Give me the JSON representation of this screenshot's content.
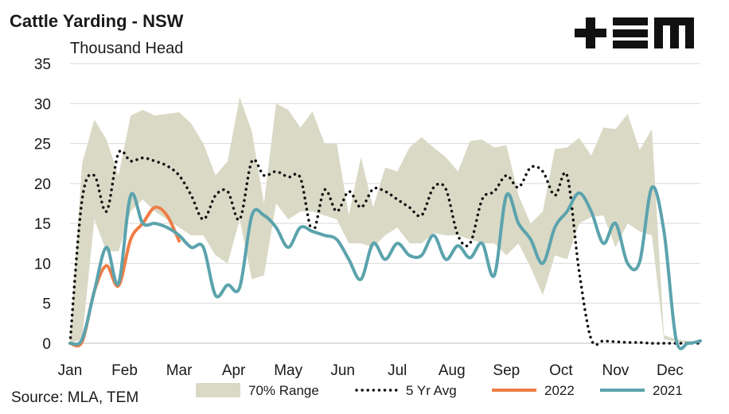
{
  "header": {
    "title": "Cattle Yarding - NSW",
    "subtitle": "Thousand Head",
    "source": "Source: MLA, TEM",
    "logo_text": "TEM"
  },
  "colors": {
    "range": "#d9d9c6",
    "avg": "#111111",
    "y2022": "#ef7d45",
    "y2021": "#5ba3ad",
    "grid": "#d9d9d9"
  },
  "chart_data": {
    "type": "line",
    "title": "Cattle Yarding - NSW",
    "ylabel": "Thousand Head",
    "ylim": [
      0,
      35
    ],
    "yticks": [
      0,
      5,
      10,
      15,
      20,
      25,
      30,
      35
    ],
    "xlim": [
      1,
      53
    ],
    "x_ticks": [
      {
        "label": "Jan",
        "week": 1
      },
      {
        "label": "Feb",
        "week": 5.5
      },
      {
        "label": "Mar",
        "week": 10
      },
      {
        "label": "Apr",
        "week": 14.5
      },
      {
        "label": "May",
        "week": 19
      },
      {
        "label": "Jun",
        "week": 23.5
      },
      {
        "label": "Jul",
        "week": 28
      },
      {
        "label": "Aug",
        "week": 32.5
      },
      {
        "label": "Sep",
        "week": 37
      },
      {
        "label": "Oct",
        "week": 41.5
      },
      {
        "label": "Nov",
        "week": 46
      },
      {
        "label": "Dec",
        "week": 50.5
      }
    ],
    "legend": [
      "70% Range",
      "5 Yr Avg",
      "2022",
      "2021"
    ],
    "legend_position": "bottom",
    "grid": true,
    "range": {
      "name": "70% Range",
      "x": [
        1,
        2,
        3,
        4,
        5,
        6,
        7,
        8,
        9,
        10,
        11,
        12,
        13,
        14,
        15,
        16,
        17,
        18,
        19,
        20,
        21,
        22,
        23,
        24,
        25,
        26,
        27,
        28,
        29,
        30,
        31,
        32,
        33,
        34,
        35,
        36,
        37,
        38,
        39,
        40,
        41,
        42,
        43,
        44,
        45,
        46,
        47,
        48,
        49,
        50,
        51,
        52,
        53
      ],
      "upper": [
        0.5,
        22.5,
        28,
        25.5,
        21,
        28.5,
        29.2,
        28.5,
        28.7,
        28.9,
        27.5,
        25,
        21,
        22.8,
        30.8,
        26.5,
        17.5,
        30,
        29.2,
        27,
        29,
        25,
        25,
        16,
        23.3,
        17,
        22,
        21.5,
        24.5,
        25.8,
        24.5,
        23.3,
        21.5,
        25.3,
        25.5,
        24.5,
        24.8,
        18.5,
        15,
        16.5,
        24.3,
        24.5,
        25.7,
        23.5,
        27,
        26.8,
        28.7,
        24.2,
        26.8,
        1,
        0.5,
        0.3,
        0.2
      ],
      "lower": [
        0,
        0.5,
        15.5,
        11.5,
        11.5,
        16.5,
        18,
        16.5,
        15.5,
        14.5,
        13.5,
        13.5,
        11,
        10,
        15.5,
        8,
        8.5,
        17.5,
        15.5,
        16.5,
        16.5,
        16,
        15.5,
        12.5,
        12.5,
        12,
        13.5,
        14.5,
        12.5,
        12.5,
        13.8,
        13.5,
        13.5,
        13,
        12.5,
        12.5,
        11,
        12.5,
        9.5,
        6,
        11,
        10.5,
        15,
        15.8,
        16,
        12,
        15,
        14,
        13.5,
        0.5,
        0.2,
        0.1,
        0
      ]
    },
    "series": [
      {
        "name": "5 Yr Avg",
        "x": [
          1,
          2,
          3,
          4,
          5,
          6,
          7,
          8,
          9,
          10,
          11,
          12,
          13,
          14,
          15,
          16,
          17,
          18,
          19,
          20,
          21,
          22,
          23,
          24,
          25,
          26,
          27,
          28,
          29,
          30,
          31,
          32,
          33,
          34,
          35,
          36,
          37,
          38,
          39,
          40,
          41,
          42,
          43,
          44,
          45,
          46,
          47,
          48,
          49,
          50,
          51,
          52,
          53
        ],
        "values": [
          0,
          18,
          21,
          16.5,
          23.8,
          22.8,
          23.2,
          22.8,
          22.2,
          21,
          18.5,
          15.5,
          18.5,
          19,
          15.5,
          22.8,
          21,
          21.5,
          20.8,
          20.7,
          14,
          19.2,
          16.5,
          19,
          17,
          19.3,
          19,
          18,
          17,
          16,
          19.5,
          19.3,
          13.5,
          12.5,
          18,
          19,
          21,
          19.5,
          22,
          21.5,
          18.5,
          21,
          9,
          0.5,
          0.3,
          0.2,
          0.1,
          0.1,
          0,
          0,
          0,
          0,
          0
        ]
      },
      {
        "name": "2022",
        "x": [
          1,
          2,
          3,
          4,
          5,
          6,
          7,
          8,
          9,
          10
        ],
        "values": [
          0,
          0.2,
          6.5,
          9.7,
          7.2,
          13,
          15,
          17,
          16,
          12.8
        ]
      },
      {
        "name": "2021",
        "x": [
          1,
          2,
          3,
          4,
          5,
          6,
          7,
          8,
          9,
          10,
          11,
          12,
          13,
          14,
          15,
          16,
          17,
          18,
          19,
          20,
          21,
          22,
          23,
          24,
          25,
          26,
          27,
          28,
          29,
          30,
          31,
          32,
          33,
          34,
          35,
          36,
          37,
          38,
          39,
          40,
          41,
          42,
          43,
          44,
          45,
          46,
          47,
          48,
          49,
          50,
          51,
          52,
          53
        ],
        "values": [
          0,
          0.5,
          6.5,
          12,
          7.5,
          18.5,
          15,
          15,
          14.5,
          13.5,
          12,
          12,
          6,
          7.3,
          7,
          16,
          16,
          14.5,
          12,
          14.5,
          14,
          13.5,
          13,
          10.5,
          8,
          12.5,
          10.5,
          12.5,
          11,
          11,
          13.5,
          10.5,
          12.2,
          10.7,
          12.5,
          8.5,
          18.5,
          15,
          13,
          10,
          14.5,
          16.5,
          18.8,
          16.5,
          12.5,
          15,
          10,
          10.2,
          19.5,
          14,
          0.5,
          0,
          0.3
        ]
      }
    ]
  }
}
